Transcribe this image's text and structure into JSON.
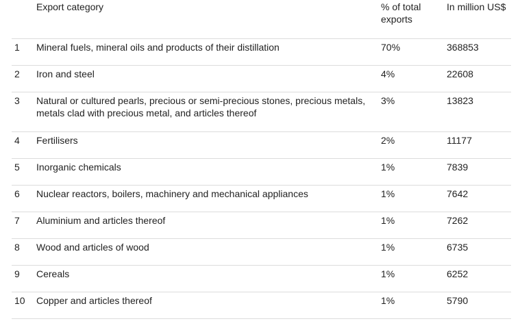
{
  "table": {
    "headers": {
      "num": "",
      "category": "Export category",
      "percent_line1": "% of total",
      "percent_line2": "exports",
      "value": "In million US$"
    },
    "rows": [
      {
        "rank": "1",
        "category": "Mineral fuels, mineral oils and products of their distillation",
        "category_line2": "",
        "percent": "70%",
        "value": "368853"
      },
      {
        "rank": "2",
        "category": "Iron and steel",
        "category_line2": "",
        "percent": "4%",
        "value": "22608"
      },
      {
        "rank": "3",
        "category": "Natural or cultured pearls, precious or semi-precious stones, precious metals,",
        "category_line2": "metals clad with precious metal, and articles thereof",
        "percent": "3%",
        "value": "13823"
      },
      {
        "rank": "4",
        "category": "Fertilisers",
        "category_line2": "",
        "percent": "2%",
        "value": "11177"
      },
      {
        "rank": "5",
        "category": "Inorganic chemicals",
        "category_line2": "",
        "percent": "1%",
        "value": "7839"
      },
      {
        "rank": "6",
        "category": "Nuclear reactors, boilers, machinery and mechanical appliances",
        "category_line2": "",
        "percent": "1%",
        "value": "7642"
      },
      {
        "rank": "7",
        "category": "Aluminium and articles thereof",
        "category_line2": "",
        "percent": "1%",
        "value": "7262"
      },
      {
        "rank": "8",
        "category": "Wood and articles of wood",
        "category_line2": "",
        "percent": "1%",
        "value": "6735"
      },
      {
        "rank": "9",
        "category": "Cereals",
        "category_line2": "",
        "percent": "1%",
        "value": "6252"
      },
      {
        "rank": "10",
        "category": "Copper and articles thereof",
        "category_line2": "",
        "percent": "1%",
        "value": "5790"
      }
    ]
  }
}
